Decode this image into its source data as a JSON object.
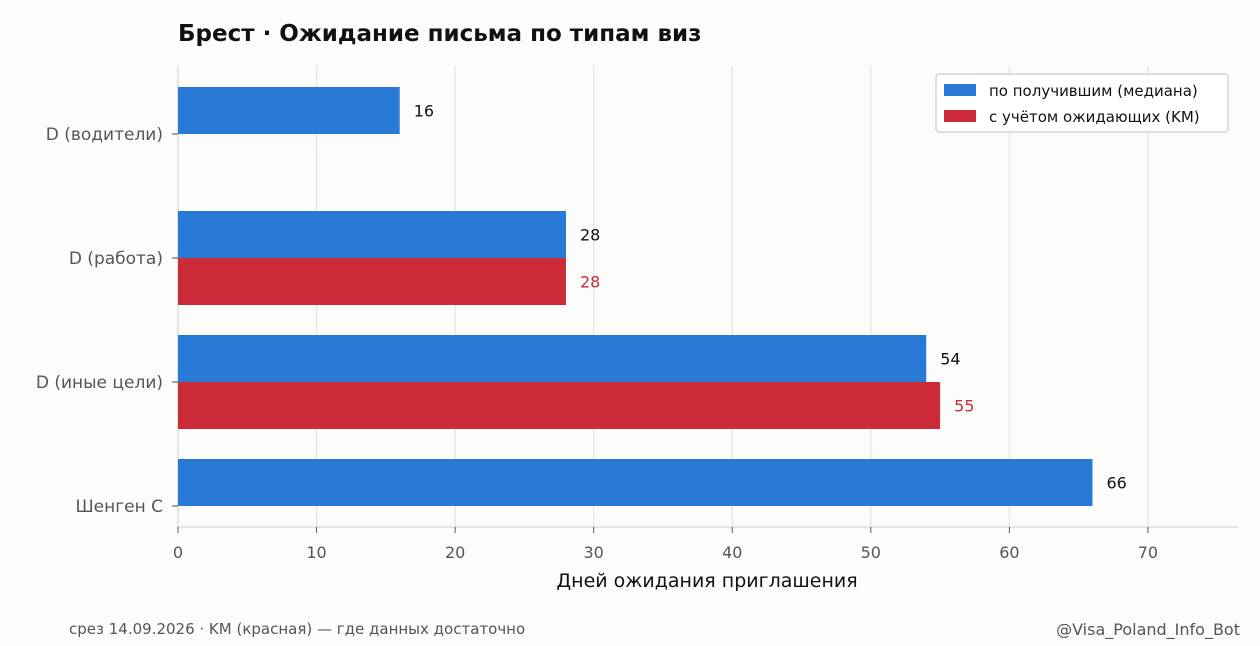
{
  "chart_data": {
    "type": "bar",
    "orientation": "horizontal",
    "title": "Брест · Ожидание письма по типам виз",
    "xlabel": "Дней ожидания приглашения",
    "ylabel": "",
    "categories": [
      "D (водители)",
      "D (работа)",
      "D (иные цели)",
      "Шенген С"
    ],
    "series": [
      {
        "name": "по получившим (медиана)",
        "color": "#2979d6",
        "values": [
          16,
          28,
          54,
          66
        ]
      },
      {
        "name": "с учётом ожидающих (KM)",
        "color": "#cc2b3a",
        "values": [
          null,
          28,
          55,
          null
        ]
      }
    ],
    "xlim": [
      0,
      76.5
    ],
    "xticks": [
      0,
      10,
      20,
      30,
      40,
      50,
      60,
      70
    ],
    "grid": true,
    "legend": "top-right"
  },
  "footer": {
    "left": "срез 14.09.2026 · KM (красная) — где данных достаточно",
    "right": "@Visa_Poland_Info_Bot"
  }
}
